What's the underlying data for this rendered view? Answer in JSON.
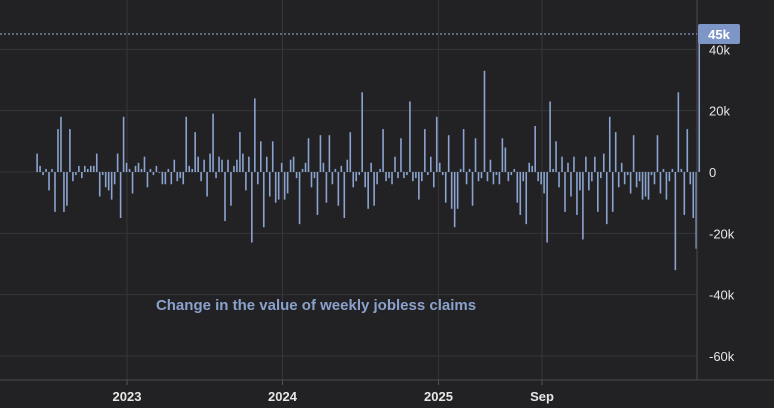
{
  "chart_data": {
    "type": "bar",
    "title": "",
    "xlabel": "",
    "ylabel": "",
    "annotation": "Change in the value of weekly jobless claims",
    "ylim": [
      -70000,
      45000
    ],
    "y_ticks": [
      40000,
      20000,
      0,
      -20000,
      -40000,
      -60000
    ],
    "y_tick_labels": [
      "40k",
      "20k",
      "0",
      "-20k",
      "-40k",
      "-60k"
    ],
    "x_range": [
      "2022-06-01",
      "2026-02-28"
    ],
    "x_ticks": [
      {
        "date": "2023-01-01",
        "label": "2023"
      },
      {
        "date": "2024-01-01",
        "label": "2024"
      },
      {
        "date": "2025-01-01",
        "label": "2025"
      },
      {
        "date": "2025-09-01",
        "label": "Sep"
      }
    ],
    "last_value_label": "45k",
    "last_value": 45000,
    "bar_color": "#8ba3cf",
    "badge_color": "#7e96c6",
    "grid": true,
    "series": [
      {
        "start_date": "2022-06-04",
        "frequency": "weekly",
        "values": [
          6000,
          2000,
          -1000,
          1000,
          -6000,
          1000,
          -13000,
          14000,
          18000,
          -13000,
          -11000,
          14000,
          -3000,
          -1000,
          2000,
          -2000,
          2000,
          1000,
          2000,
          2000,
          6000,
          -8000,
          -1000,
          -5000,
          -6000,
          -9000,
          -4000,
          6000,
          -15000,
          18000,
          3000,
          1000,
          -7000,
          2000,
          3000,
          1000,
          5000,
          -5000,
          1000,
          -1000,
          2000,
          0,
          -4000,
          -4000,
          1000,
          -4000,
          4000,
          -3000,
          -2000,
          -4000,
          18000,
          2000,
          1000,
          13000,
          5000,
          -3000,
          4000,
          -8000,
          6000,
          19000,
          -2000,
          5000,
          4000,
          -16000,
          4000,
          -11000,
          2000,
          4000,
          13000,
          6000,
          -6000,
          5000,
          -23000,
          24000,
          -4000,
          10000,
          -18000,
          5000,
          -8000,
          10000,
          -10000,
          -9000,
          3000,
          -9000,
          -7000,
          4000,
          5000,
          -2000,
          -17000,
          1000,
          3000,
          11000,
          -5000,
          -2000,
          -14000,
          12000,
          3000,
          -10000,
          12000,
          -4000,
          1000,
          -11000,
          2000,
          -15000,
          4000,
          13000,
          -5000,
          -3000,
          -1000,
          26000,
          -5000,
          -12000,
          3000,
          -11000,
          -4000,
          1000,
          14000,
          -3000,
          -2000,
          -4000,
          5000,
          -2000,
          11000,
          -2000,
          -1000,
          23000,
          -3000,
          -2000,
          -9000,
          -3000,
          14000,
          -1000,
          5000,
          -5000,
          18000,
          3000,
          -1000,
          -10000,
          12000,
          -12000,
          -18000,
          -12000,
          1000,
          14000,
          -4000,
          1000,
          -11000,
          11000,
          -3000,
          -2000,
          33000,
          -3000,
          4000,
          -4000,
          -1000,
          -4000,
          11000,
          8000,
          -3000,
          -1000,
          1000,
          -10000,
          -14000,
          -3000,
          -17000,
          3000,
          2000,
          15000,
          -3000,
          -4000,
          -7000,
          -23000,
          23000,
          1000,
          10000,
          -5000,
          5000,
          -13000,
          3000,
          -8000,
          5000,
          -14000,
          -6000,
          -22000,
          5000,
          -6000,
          -3000,
          5000,
          -13000,
          -2000,
          6000,
          -17000,
          18000,
          -13000,
          13000,
          -5000,
          3000,
          -4000,
          -1000,
          -7000,
          12000,
          -5000,
          -3000,
          -9000,
          -8000,
          -9000,
          -1000,
          -4000,
          12000,
          -7000,
          1000,
          -9000,
          -3000,
          1000,
          -32000,
          26000,
          1000,
          -14000,
          14000,
          -4000,
          -15000,
          -25000,
          45000
        ]
      }
    ]
  }
}
